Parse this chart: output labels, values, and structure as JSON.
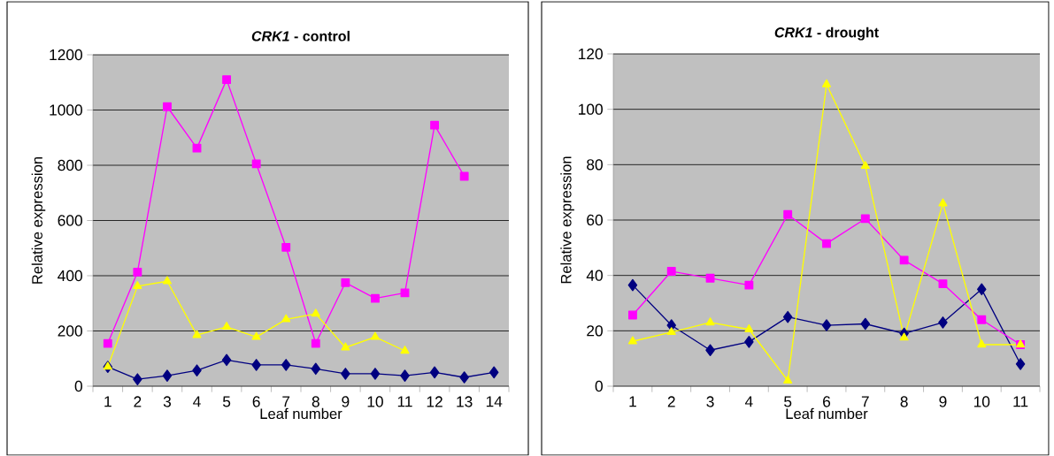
{
  "chart_data": [
    {
      "type": "line",
      "title": "*CRK1* - control",
      "xlabel": "Leaf number",
      "ylabel": "Relative expression",
      "categories": [
        "1",
        "2",
        "3",
        "4",
        "5",
        "6",
        "7",
        "8",
        "9",
        "10",
        "11",
        "12",
        "13",
        "14"
      ],
      "series": [
        {
          "color": "#000080",
          "marker": "diamond",
          "values": [
            70,
            25,
            38,
            57,
            95,
            77,
            77,
            63,
            45,
            45,
            38,
            50,
            32,
            50
          ]
        },
        {
          "color": "#ff00ff",
          "marker": "square",
          "values": [
            155,
            413,
            1012,
            862,
            1110,
            805,
            503,
            155,
            375,
            318,
            338,
            945,
            760,
            null
          ]
        },
        {
          "color": "#ffff00",
          "marker": "triangle",
          "values": [
            70,
            362,
            380,
            185,
            215,
            178,
            242,
            262,
            140,
            178,
            128,
            null,
            null,
            null
          ]
        }
      ],
      "ylim": [
        0,
        1200
      ],
      "yticks": [
        0,
        200,
        400,
        600,
        800,
        1000,
        1200
      ],
      "grid": "y"
    },
    {
      "type": "line",
      "title": "*CRK1* - drought",
      "xlabel": "Leaf number",
      "ylabel": "Relative expression",
      "categories": [
        "1",
        "2",
        "3",
        "4",
        "5",
        "6",
        "7",
        "8",
        "9",
        "10",
        "11"
      ],
      "series": [
        {
          "color": "#000080",
          "marker": "diamond",
          "values": [
            36.5,
            22,
            13,
            16,
            25,
            22,
            22.5,
            19,
            23,
            35,
            8
          ]
        },
        {
          "color": "#ff00ff",
          "marker": "square",
          "values": [
            25.7,
            41.5,
            39,
            36.5,
            62,
            51.5,
            60.5,
            45.5,
            37,
            24,
            15
          ]
        },
        {
          "color": "#ffff00",
          "marker": "triangle",
          "values": [
            16.2,
            19.5,
            23,
            20.5,
            2,
            109,
            79.5,
            17.5,
            66,
            15,
            15
          ]
        }
      ],
      "ylim": [
        0,
        120
      ],
      "yticks": [
        0,
        20,
        40,
        60,
        80,
        100,
        120
      ],
      "grid": "y"
    }
  ]
}
